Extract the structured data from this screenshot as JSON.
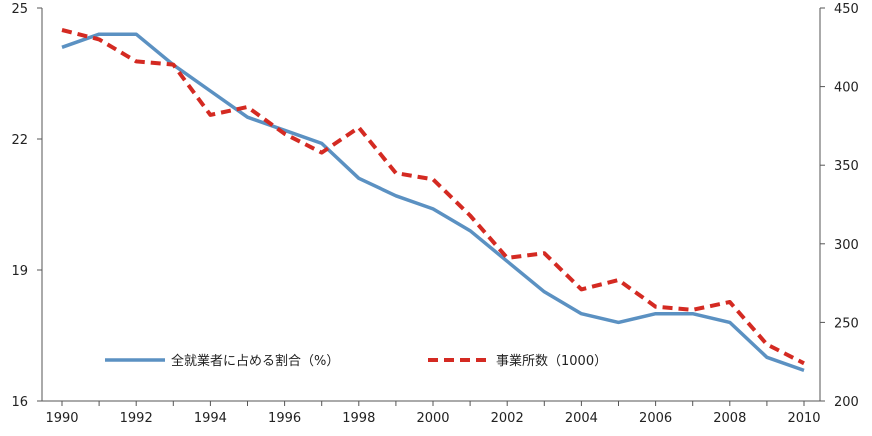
{
  "chart_data": {
    "type": "line",
    "x": [
      1990,
      1991,
      1992,
      1993,
      1994,
      1995,
      1996,
      1997,
      1998,
      1999,
      2000,
      2001,
      2002,
      2003,
      2004,
      2005,
      2006,
      2007,
      2008,
      2009,
      2010
    ],
    "x_ticks": [
      "1990",
      "1992",
      "1994",
      "1996",
      "1998",
      "2000",
      "2002",
      "2004",
      "2006",
      "2008",
      "2010"
    ],
    "y_left": {
      "range": [
        16,
        25
      ],
      "ticks": [
        "16",
        "19",
        "22",
        "25"
      ]
    },
    "y_right": {
      "range": [
        200,
        450
      ],
      "ticks": [
        "200",
        "250",
        "300",
        "350",
        "400",
        "450"
      ]
    },
    "grid": false,
    "legend_position": "bottom-inside",
    "series": [
      {
        "name": "全就業者に占める割合（%）",
        "axis": "left",
        "style": "solid",
        "color": "#5b91c2",
        "values": [
          24.1,
          24.4,
          24.4,
          23.7,
          23.1,
          22.5,
          22.2,
          21.9,
          21.1,
          20.7,
          20.4,
          19.9,
          19.2,
          18.5,
          18.0,
          17.8,
          18.0,
          18.0,
          17.8,
          17.0,
          16.7
        ]
      },
      {
        "name": "事業所数（1000）",
        "axis": "right",
        "style": "dashed",
        "color": "#d42a22",
        "values": [
          436,
          430,
          416,
          414,
          382,
          387,
          370,
          358,
          374,
          345,
          341,
          318,
          291,
          294,
          271,
          277,
          260,
          258,
          263,
          236,
          224
        ]
      }
    ]
  }
}
